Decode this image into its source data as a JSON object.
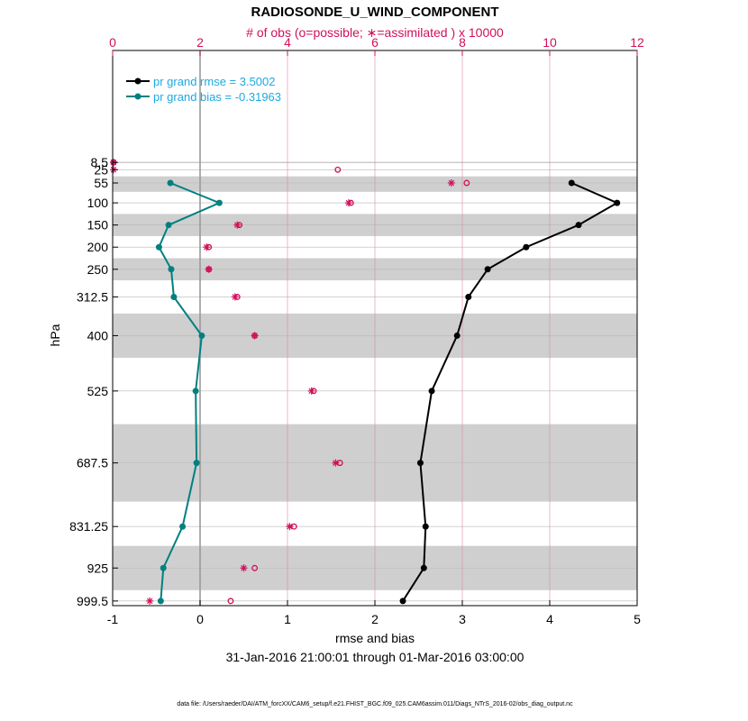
{
  "chart_data": {
    "type": "line",
    "title": "RADIOSONDE_U_WIND_COMPONENT",
    "top_axis_label": "# of obs (o=possible; ∗=assimilated ) x 10000",
    "xlabel": "rmse and bias",
    "ylabel": "hPa",
    "date_range": "31-Jan-2016 21:00:01 through 01-Mar-2016 03:00:00",
    "footnote": "data file: /Users/raeder/DAI/ATM_forcXX/CAM6_setup/f.e21.FHIST_BGC.f09_025.CAM6assim.011/Diags_NTrS_2016-02/obs_diag_output.nc",
    "xlim": [
      -1,
      5
    ],
    "x_ticks": [
      "-1",
      "0",
      "1",
      "2",
      "3",
      "4",
      "5"
    ],
    "top_xlim": [
      0,
      12
    ],
    "top_ticks": [
      "0",
      "2",
      "4",
      "6",
      "8",
      "10",
      "12"
    ],
    "levels": [
      8.5,
      25,
      55,
      100,
      150,
      200,
      250,
      312.5,
      400,
      525,
      687.5,
      831.25,
      925,
      999.5
    ],
    "level_labels": [
      "8.5",
      "25",
      "55",
      "100",
      "150",
      "200",
      "250",
      "312.5",
      "400",
      "525",
      "687.5",
      "831.25",
      "925",
      "999.5"
    ],
    "legend": {
      "rmse": "pr grand rmse = 3.5002",
      "bias": "pr grand bias = -0.31963"
    },
    "series": [
      {
        "name": "rmse",
        "color": "#000000",
        "levels": [
          55,
          100,
          150,
          200,
          250,
          312.5,
          400,
          525,
          687.5,
          831.25,
          925,
          999.5
        ],
        "values": [
          4.25,
          4.77,
          4.33,
          3.73,
          3.29,
          3.07,
          2.94,
          2.65,
          2.52,
          2.58,
          2.56,
          2.32
        ]
      },
      {
        "name": "bias",
        "color": "#008080",
        "levels": [
          55,
          100,
          150,
          200,
          250,
          312.5,
          400,
          525,
          687.5,
          831.25,
          925,
          999.5
        ],
        "values": [
          -0.34,
          0.22,
          -0.36,
          -0.47,
          -0.33,
          -0.3,
          0.02,
          -0.05,
          -0.04,
          -0.2,
          -0.42,
          -0.45
        ]
      }
    ],
    "obs_counts": {
      "levels": [
        8.5,
        25,
        55,
        100,
        150,
        200,
        250,
        312.5,
        400,
        525,
        687.5,
        831.25,
        925,
        999.5
      ],
      "possible": [
        0.02,
        5.15,
        8.1,
        5.45,
        2.9,
        2.2,
        2.2,
        2.85,
        3.25,
        4.6,
        5.2,
        4.15,
        3.25,
        2.7
      ],
      "assimilated": [
        0.02,
        0.02,
        7.75,
        5.4,
        2.85,
        2.15,
        2.2,
        2.8,
        3.25,
        4.55,
        5.1,
        4.05,
        3.0,
        0.85
      ]
    },
    "shaded_bands": [
      [
        7.5,
        10
      ],
      [
        40,
        75
      ],
      [
        125,
        175
      ],
      [
        225,
        275
      ],
      [
        350,
        450
      ],
      [
        600,
        775
      ],
      [
        875,
        975
      ]
    ],
    "grid": true
  }
}
